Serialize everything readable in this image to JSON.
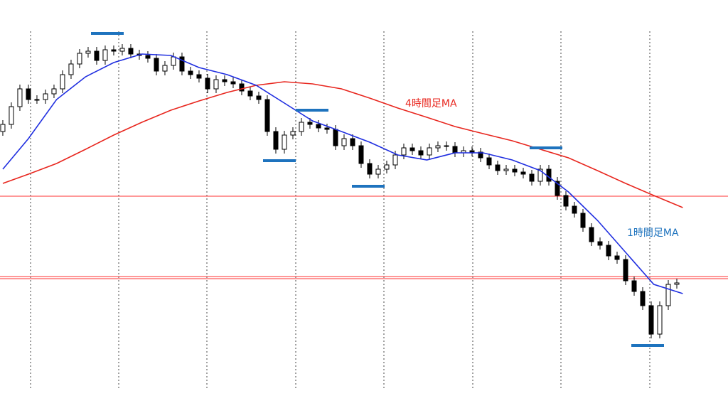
{
  "chart_data": {
    "type": "candlestick",
    "xlim": [
      -0.33,
      85
    ],
    "ylim": [
      0,
      588
    ],
    "grid": true,
    "open": [
      403,
      413,
      438,
      463,
      448,
      448,
      456,
      463,
      483,
      498,
      513,
      516,
      503,
      518,
      516,
      520,
      512,
      510,
      506,
      488,
      496,
      508,
      488,
      483,
      478,
      463,
      476,
      473,
      470,
      460,
      453,
      448,
      403,
      378,
      398,
      403,
      416,
      413,
      408,
      406,
      383,
      393,
      383,
      358,
      343,
      350,
      356,
      370,
      380,
      376,
      370,
      380,
      383,
      382,
      373,
      376,
      374,
      366,
      356,
      348,
      350,
      346,
      343,
      333,
      350,
      333,
      313,
      298,
      288,
      268,
      248,
      243,
      228,
      223,
      193,
      178,
      158,
      118,
      158,
      188
    ],
    "high": [
      419,
      444,
      469,
      469,
      454,
      462,
      469,
      489,
      504,
      519,
      522,
      522,
      524,
      524,
      526,
      526,
      518,
      516,
      512,
      502,
      514,
      514,
      494,
      489,
      484,
      482,
      482,
      479,
      476,
      466,
      459,
      454,
      409,
      404,
      409,
      422,
      422,
      419,
      414,
      412,
      399,
      399,
      389,
      364,
      356,
      362,
      376,
      386,
      386,
      382,
      386,
      389,
      389,
      388,
      382,
      382,
      380,
      372,
      362,
      356,
      356,
      352,
      349,
      356,
      356,
      339,
      319,
      304,
      294,
      274,
      254,
      249,
      234,
      229,
      199,
      184,
      164,
      164,
      194,
      196
    ],
    "low": [
      397,
      407,
      432,
      442,
      442,
      442,
      450,
      457,
      477,
      492,
      507,
      497,
      497,
      510,
      510,
      506,
      504,
      500,
      482,
      482,
      490,
      482,
      477,
      472,
      457,
      457,
      467,
      464,
      454,
      447,
      442,
      397,
      372,
      372,
      392,
      397,
      407,
      402,
      400,
      377,
      377,
      377,
      352,
      337,
      337,
      344,
      350,
      364,
      370,
      364,
      364,
      374,
      376,
      367,
      367,
      368,
      360,
      350,
      342,
      342,
      340,
      337,
      327,
      327,
      327,
      307,
      292,
      282,
      262,
      242,
      237,
      222,
      217,
      187,
      172,
      152,
      112,
      112,
      152,
      182
    ],
    "close": [
      413,
      438,
      463,
      448,
      448,
      456,
      463,
      483,
      498,
      513,
      516,
      503,
      518,
      516,
      520,
      512,
      510,
      506,
      488,
      496,
      508,
      488,
      483,
      478,
      463,
      476,
      473,
      470,
      460,
      453,
      448,
      403,
      378,
      398,
      403,
      416,
      413,
      408,
      406,
      383,
      393,
      383,
      358,
      343,
      350,
      356,
      370,
      380,
      376,
      370,
      380,
      383,
      382,
      373,
      376,
      374,
      366,
      356,
      348,
      350,
      346,
      343,
      333,
      350,
      333,
      313,
      298,
      288,
      268,
      248,
      243,
      228,
      223,
      193,
      178,
      158,
      118,
      158,
      188,
      190
    ],
    "hlines": [
      312,
      199,
      196
    ],
    "hline_color": "#ff3030",
    "series": [
      {
        "name": "4時間足MA",
        "color": "#e8261e",
        "x": [
          0,
          3,
          6.3,
          9.7,
          13,
          16.3,
          19.7,
          23,
          26.3,
          29.7,
          33,
          36.3,
          39.7,
          43,
          46.3,
          49.7,
          53,
          56.3,
          59.7,
          63,
          66.3,
          69.7,
          73,
          76.3,
          79.7
        ],
        "values": [
          330,
          343,
          358,
          378,
          398,
          416,
          433,
          446,
          458,
          468,
          473,
          470,
          463,
          450,
          436,
          423,
          410,
          400,
          390,
          378,
          366,
          348,
          330,
          313,
          296
        ]
      },
      {
        "name": "1時間足MA",
        "color": "#1f2ee0",
        "x": [
          0,
          3,
          6.3,
          9.7,
          13,
          16.3,
          19.7,
          23,
          26.3,
          29.7,
          33,
          36.3,
          39.7,
          43,
          46.3,
          49.7,
          53,
          56.3,
          59.7,
          63,
          66.3,
          69.7,
          73,
          76.3,
          79.7
        ],
        "values": [
          350,
          393,
          448,
          480,
          500,
          512,
          510,
          493,
          483,
          468,
          443,
          418,
          403,
          388,
          370,
          363,
          373,
          373,
          363,
          348,
          318,
          278,
          233,
          188,
          175
        ]
      }
    ]
  }
}
